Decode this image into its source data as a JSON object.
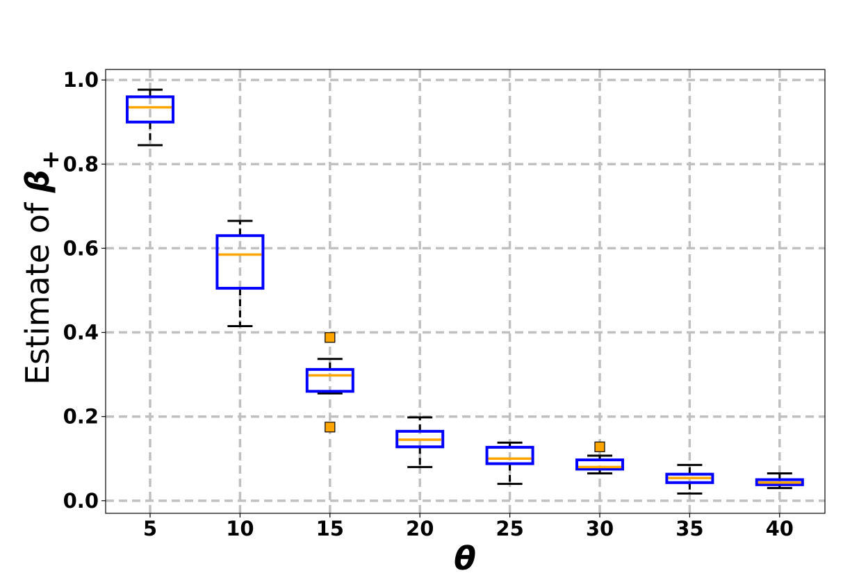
{
  "chart_data": {
    "type": "box",
    "xlabel": "θ",
    "ylabel_prefix": "Estimate of ",
    "ylabel_symbol": "β",
    "ylabel_subscript": "+",
    "ylim": [
      -0.03,
      1.025
    ],
    "yticks": [
      0.0,
      0.2,
      0.4,
      0.6,
      0.8,
      1.0
    ],
    "ytick_labels": [
      "0.0",
      "0.2",
      "0.4",
      "0.6",
      "0.8",
      "1.0"
    ],
    "categories": [
      "5",
      "10",
      "15",
      "20",
      "25",
      "30",
      "35",
      "40"
    ],
    "grid": true,
    "boxes": [
      {
        "label": "5",
        "whislo": 0.845,
        "q1": 0.9,
        "med": 0.935,
        "q3": 0.96,
        "whishi": 0.977,
        "fliers": []
      },
      {
        "label": "10",
        "whislo": 0.415,
        "q1": 0.505,
        "med": 0.585,
        "q3": 0.63,
        "whishi": 0.665,
        "fliers": []
      },
      {
        "label": "15",
        "whislo": 0.255,
        "q1": 0.26,
        "med": 0.298,
        "q3": 0.312,
        "whishi": 0.337,
        "fliers": [
          0.388,
          0.175
        ]
      },
      {
        "label": "20",
        "whislo": 0.08,
        "q1": 0.128,
        "med": 0.145,
        "q3": 0.165,
        "whishi": 0.198,
        "fliers": []
      },
      {
        "label": "25",
        "whislo": 0.04,
        "q1": 0.088,
        "med": 0.1,
        "q3": 0.127,
        "whishi": 0.138,
        "fliers": []
      },
      {
        "label": "30",
        "whislo": 0.065,
        "q1": 0.075,
        "med": 0.08,
        "q3": 0.097,
        "whishi": 0.107,
        "fliers": [
          0.128
        ]
      },
      {
        "label": "35",
        "whislo": 0.017,
        "q1": 0.043,
        "med": 0.054,
        "q3": 0.063,
        "whishi": 0.085,
        "fliers": []
      },
      {
        "label": "40",
        "whislo": 0.03,
        "q1": 0.038,
        "med": 0.043,
        "q3": 0.05,
        "whishi": 0.065,
        "fliers": []
      }
    ],
    "colors": {
      "box": "#0000ff",
      "median": "#ffa500",
      "whisker": "#000000",
      "flier": "#ffa500",
      "grid": "#c0c0c0"
    }
  }
}
